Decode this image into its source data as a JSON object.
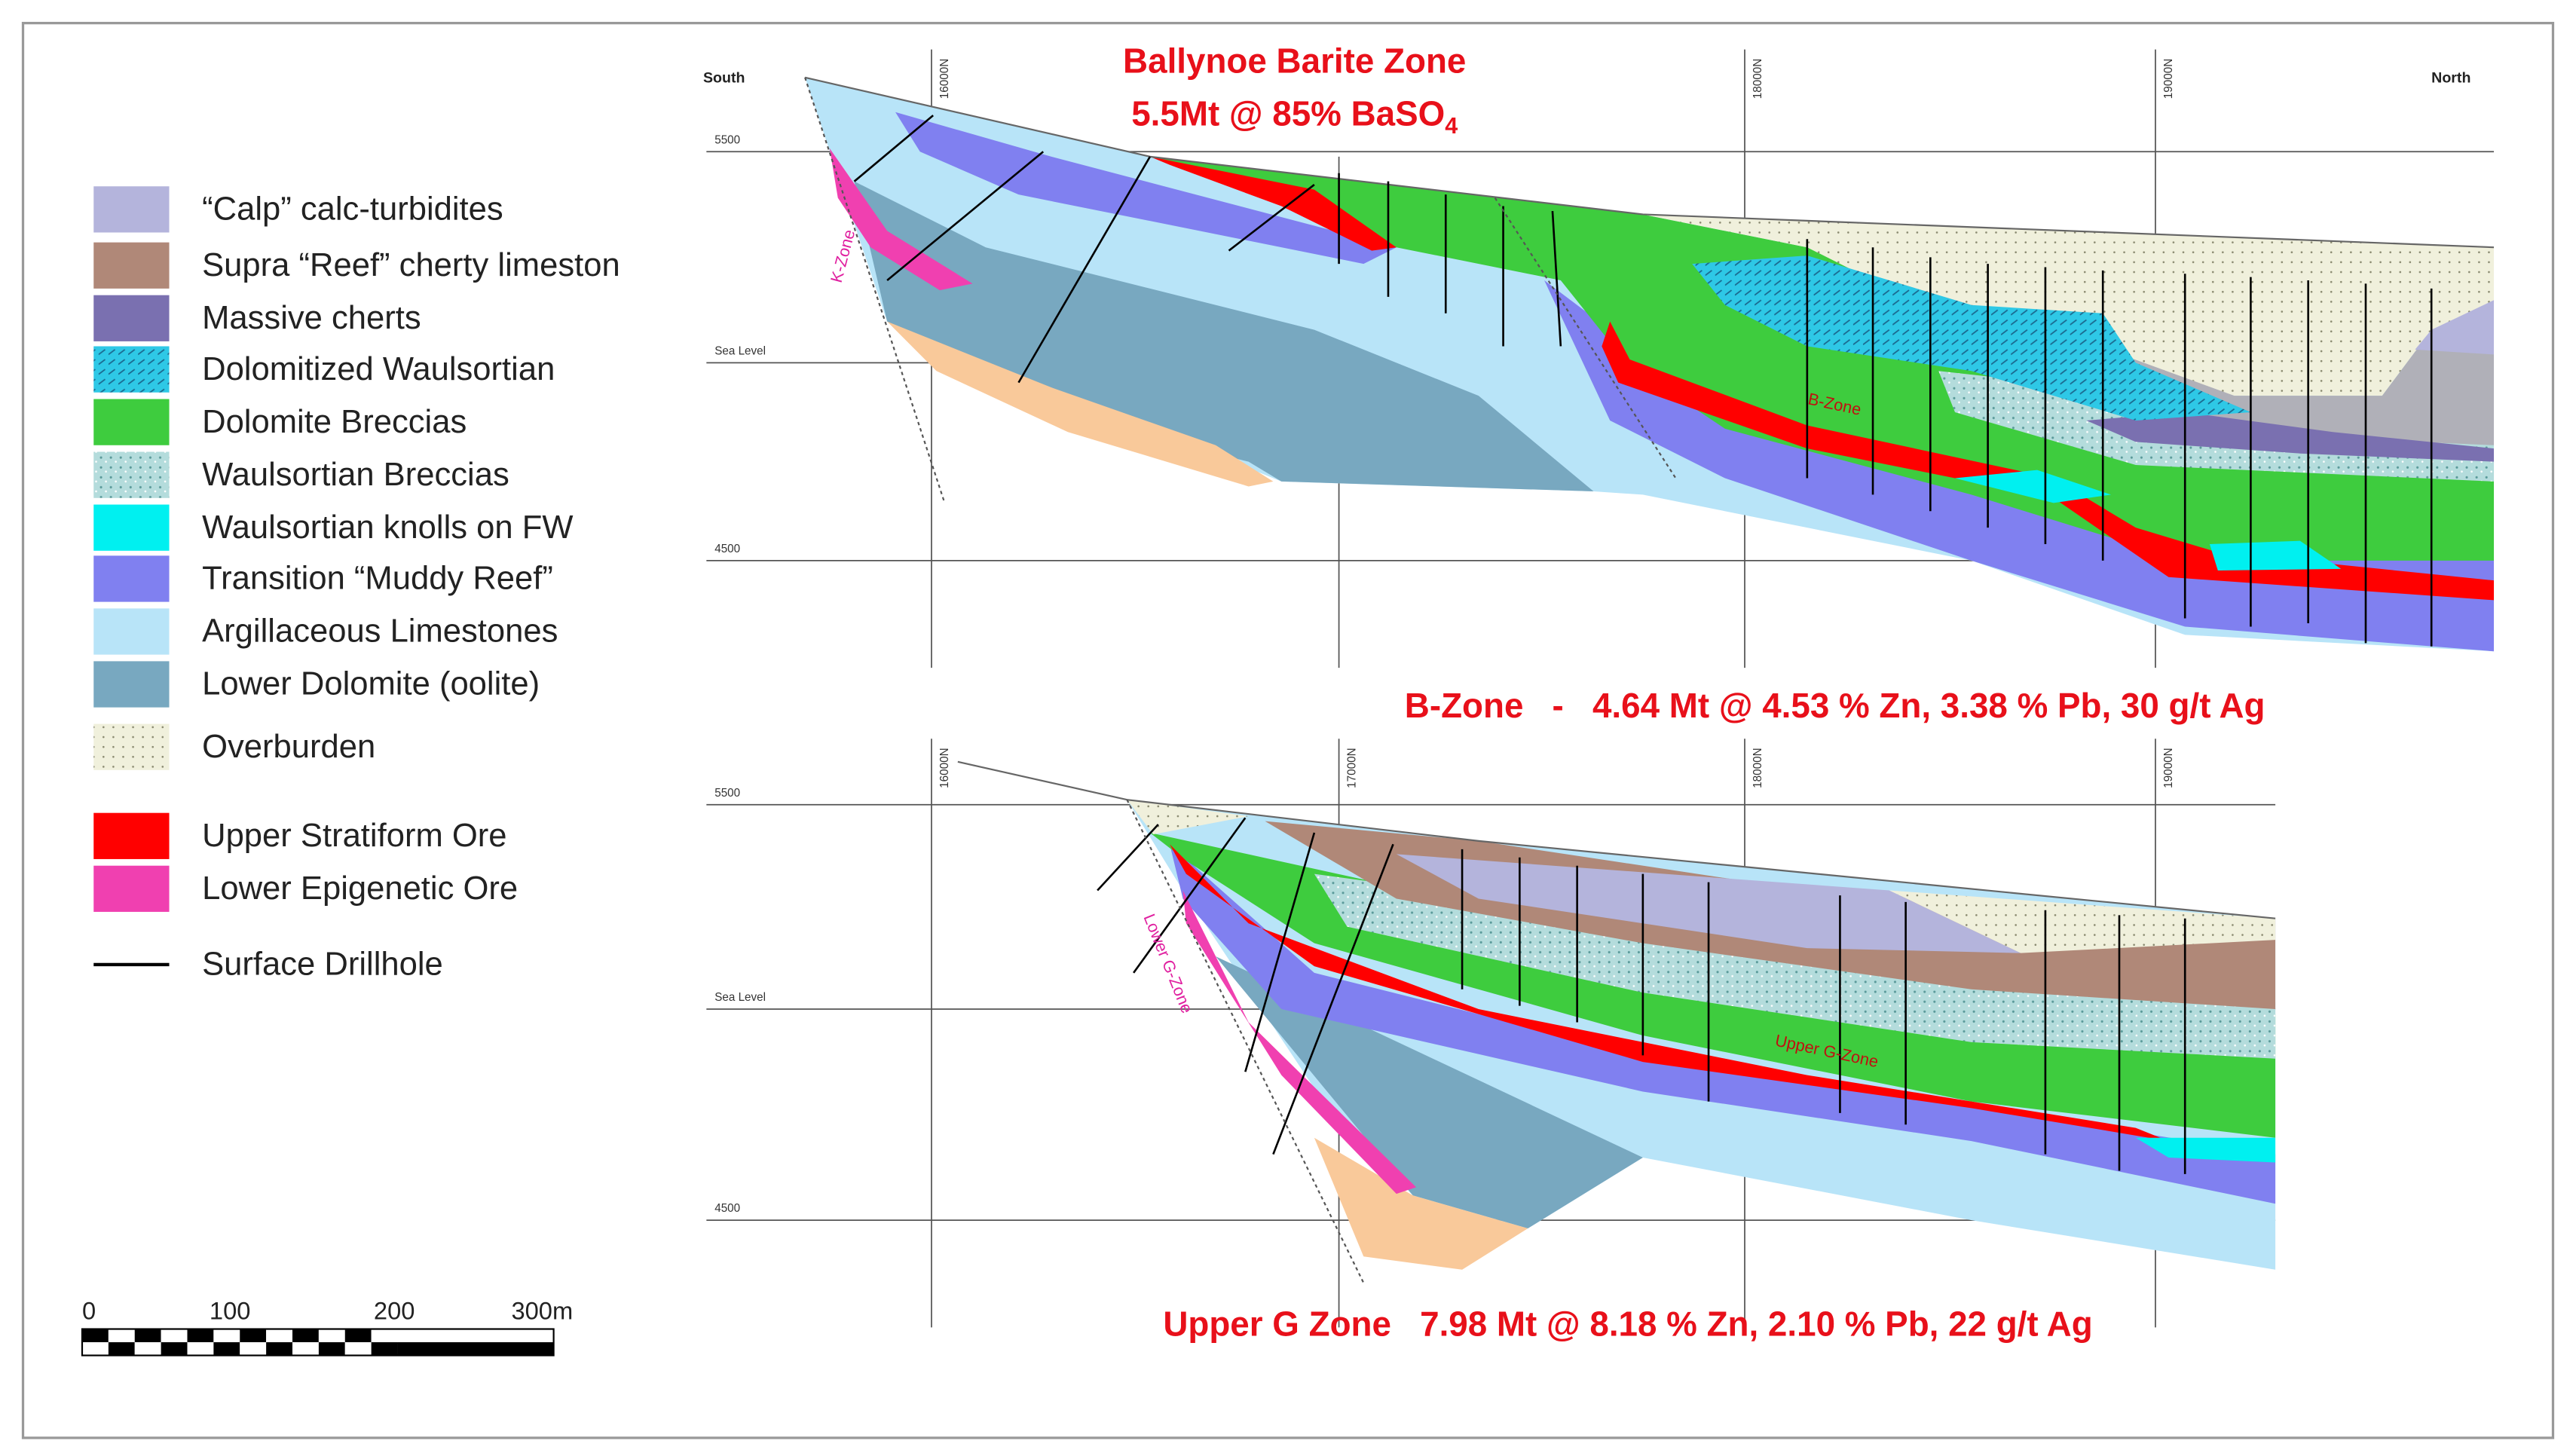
{
  "title_top": {
    "line1": "Ballynoe Barite Zone",
    "line2": "5.5Mt @ 85% BaSO",
    "line2_sub": "4"
  },
  "b_zone": "B-Zone   -   4.64 Mt @ 4.53 % Zn, 3.38 % Pb, 30 g/t Ag",
  "g_zone": "Upper G Zone   7.98 Mt @ 8.18 % Zn, 2.10 % Pb, 22 g/t Ag",
  "sections": [
    {
      "south": "South",
      "north": "North",
      "levels": [
        "5500",
        "Sea Level",
        "4500"
      ],
      "grid": [
        "16000N",
        "18000N",
        "19000N"
      ],
      "zones": [
        "K-Zone",
        "B-Zone"
      ]
    },
    {
      "levels": [
        "5500",
        "Sea Level",
        "4500"
      ],
      "grid": [
        "16000N",
        "17000N",
        "18000N",
        "19000N"
      ],
      "zones": [
        "Lower G-Zone",
        "Upper G-Zone"
      ]
    }
  ],
  "legend": [
    {
      "label": "“Calp” calc-turbidites",
      "color": "#b4b4dc"
    },
    {
      "label": "Supra “Reef” cherty limeston",
      "color": "#b08878"
    },
    {
      "label": "Massive cherts",
      "color": "#7a70b0"
    },
    {
      "label": "Dolomitized Waulsortian",
      "color": "#2ec8e6",
      "pattern": "hatch"
    },
    {
      "label": "Dolomite Breccias",
      "color": "#3ecc3e"
    },
    {
      "label": "Waulsortian Breccias",
      "color": "#b4dcdc",
      "pattern": "speckle"
    },
    {
      "label": "Waulsortian knolls on FW",
      "color": "#00f0f0"
    },
    {
      "label": "Transition “Muddy Reef”",
      "color": "#8080f0"
    },
    {
      "label": "Argillaceous Limestones",
      "color": "#b8e4f8"
    },
    {
      "label": "Lower Dolomite (oolite)",
      "color": "#78a8c0"
    },
    {
      "label": "Overburden",
      "color": "#f0f0dc",
      "pattern": "dots"
    },
    {
      "label": "Upper Stratiform Ore",
      "color": "#ff0000"
    },
    {
      "label": "Lower Epigenetic Ore",
      "color": "#f040b0"
    },
    {
      "label": "Surface Drillhole",
      "color": "#000000",
      "line": true
    }
  ],
  "scale_bar": [
    "0",
    "100",
    "200",
    "300m"
  ]
}
